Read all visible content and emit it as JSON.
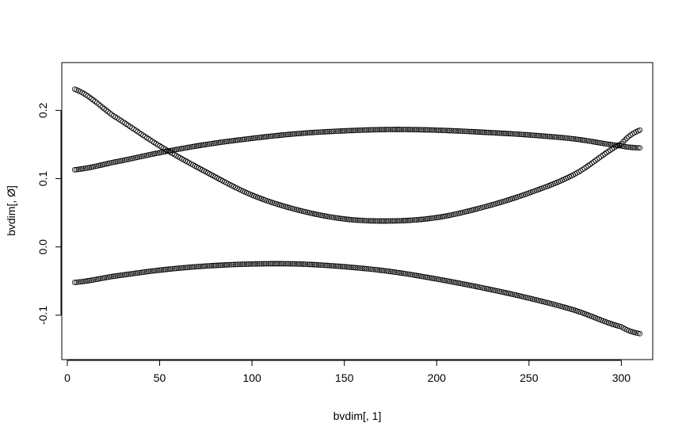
{
  "chart_data": {
    "type": "scatter",
    "title": "",
    "xlabel": "bvdim[, 1]",
    "ylabel": "bvdim[, Ø]",
    "xlim": [
      -3,
      317
    ],
    "ylim": [
      -0.165,
      0.27
    ],
    "x_ticks": [
      0,
      50,
      100,
      150,
      200,
      250,
      300
    ],
    "x_tick_labels": [
      "0",
      "50",
      "100",
      "150",
      "200",
      "250",
      "300"
    ],
    "y_ticks": [
      -0.1,
      0.0,
      0.1,
      0.2
    ],
    "y_tick_labels": [
      "-0.1",
      "0.0",
      "0.1",
      "0.2"
    ],
    "grid": false,
    "legend": "none",
    "marker": "open-circle",
    "x_range": [
      4,
      310
    ],
    "n_points_per_series": 307,
    "series": [
      {
        "x": [
          4,
          25,
          50,
          75,
          100,
          125,
          150,
          175,
          200,
          225,
          250,
          275,
          300,
          310
        ],
        "y": [
          0.231,
          0.192,
          0.148,
          0.11,
          0.076,
          0.054,
          0.041,
          0.038,
          0.043,
          0.058,
          0.079,
          0.107,
          0.151,
          0.171
        ]
      },
      {
        "x": [
          4,
          25,
          50,
          75,
          100,
          125,
          150,
          175,
          200,
          225,
          250,
          275,
          300,
          310
        ],
        "y": [
          0.113,
          0.124,
          0.138,
          0.15,
          0.159,
          0.166,
          0.17,
          0.172,
          0.171,
          0.168,
          0.164,
          0.158,
          0.148,
          0.145
        ]
      },
      {
        "x": [
          4,
          25,
          50,
          75,
          100,
          125,
          150,
          175,
          200,
          225,
          250,
          275,
          300,
          310
        ],
        "y": [
          -0.052,
          -0.043,
          -0.034,
          -0.028,
          -0.025,
          -0.025,
          -0.029,
          -0.036,
          -0.047,
          -0.06,
          -0.075,
          -0.093,
          -0.117,
          -0.127
        ]
      }
    ]
  }
}
